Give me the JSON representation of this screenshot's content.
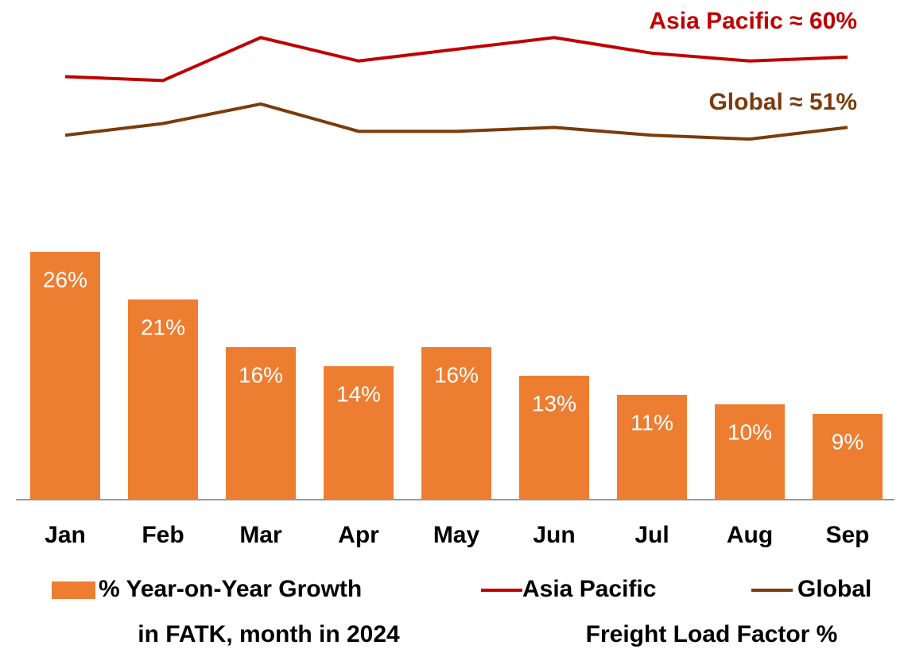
{
  "chart_data": {
    "type": "bar",
    "categories": [
      "Jan",
      "Feb",
      "Mar",
      "Apr",
      "May",
      "Jun",
      "Jul",
      "Aug",
      "Sep"
    ],
    "series": [
      {
        "name": "% Year-on-Year Growth",
        "type": "bar",
        "color": "#ed7d31",
        "values": [
          26,
          21,
          16,
          14,
          16,
          13,
          11,
          10,
          9
        ],
        "value_labels": [
          "26%",
          "21%",
          "16%",
          "14%",
          "16%",
          "13%",
          "11%",
          "10%",
          "9%"
        ]
      },
      {
        "name": "Asia Pacific",
        "type": "line",
        "axis": "y2",
        "color": "#c00000",
        "values": [
          57.5,
          57,
          62.5,
          59.5,
          61,
          62.5,
          60.5,
          59.5,
          60
        ]
      },
      {
        "name": "Global",
        "type": "line",
        "axis": "y2",
        "color": "#7b3b0c",
        "values": [
          50,
          51.5,
          54,
          50.5,
          50.5,
          51,
          50,
          49.5,
          51
        ]
      }
    ],
    "legend_notes": [
      "in FATK, month in 2024",
      "Freight Load Factor %"
    ],
    "annotations": [
      "Asia Pacific ≈ 60%",
      "Global ≈ 51%"
    ],
    "ylim": [
      0,
      28
    ],
    "y2lim": [
      30,
      67
    ]
  }
}
